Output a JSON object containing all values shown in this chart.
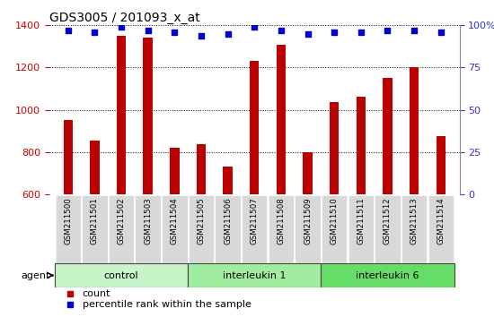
{
  "title": "GDS3005 / 201093_x_at",
  "samples": [
    "GSM211500",
    "GSM211501",
    "GSM211502",
    "GSM211503",
    "GSM211504",
    "GSM211505",
    "GSM211506",
    "GSM211507",
    "GSM211508",
    "GSM211509",
    "GSM211510",
    "GSM211511",
    "GSM211512",
    "GSM211513",
    "GSM211514"
  ],
  "counts": [
    950,
    855,
    1350,
    1340,
    820,
    835,
    730,
    1230,
    1310,
    800,
    1035,
    1060,
    1150,
    1200,
    875
  ],
  "percentile_ranks": [
    97,
    96,
    99,
    97,
    96,
    94,
    95,
    99,
    97,
    95,
    96,
    96,
    97,
    97,
    96
  ],
  "groups": [
    {
      "label": "control",
      "start": 0,
      "end": 4,
      "color": "#c8f5c8"
    },
    {
      "label": "interleukin 1",
      "start": 5,
      "end": 9,
      "color": "#a0eda0"
    },
    {
      "label": "interleukin 6",
      "start": 10,
      "end": 14,
      "color": "#66dd66"
    }
  ],
  "ylim_left": [
    600,
    1400
  ],
  "ylim_right": [
    0,
    100
  ],
  "yticks_left": [
    600,
    800,
    1000,
    1200,
    1400
  ],
  "yticks_right": [
    0,
    25,
    50,
    75,
    100
  ],
  "bar_color": "#bb0000",
  "dot_color": "#0000cc",
  "bar_width": 0.35,
  "grid_color": "#000000",
  "bg_color": "#ffffff",
  "tick_label_color_left": "#cc0000",
  "tick_label_color_right": "#3333cc",
  "xlabel_agent": "agent",
  "legend_count": "count",
  "legend_pct": "percentile rank within the sample",
  "xtick_bg": "#d8d8d8"
}
